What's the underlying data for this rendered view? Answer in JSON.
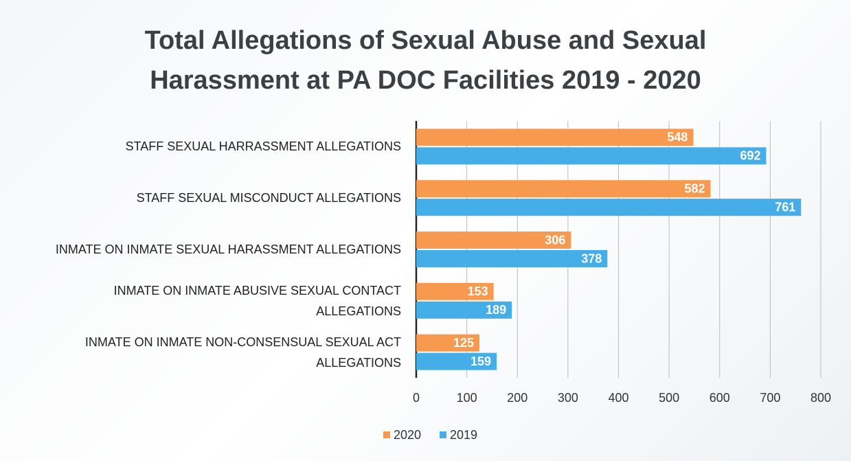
{
  "chart_data": {
    "type": "hbar",
    "title": "Total Allegations of Sexual Abuse and Sexual\nHarassment at PA DOC Facilities 2019 - 2020",
    "categories": [
      "STAFF SEXUAL HARRASSMENT ALLEGATIONS",
      "STAFF SEXUAL MISCONDUCT ALLEGATIONS",
      "INMATE ON INMATE SEXUAL HARASSMENT ALLEGATIONS",
      "INMATE ON INMATE ABUSIVE SEXUAL CONTACT\nALLEGATIONS",
      "INMATE ON INMATE NON-CONSENSUAL SEXUAL ACT\nALLEGATIONS"
    ],
    "series": [
      {
        "name": "2020",
        "color": "#f79a4f",
        "values": [
          548,
          582,
          306,
          153,
          125
        ]
      },
      {
        "name": "2019",
        "color": "#45aee8",
        "values": [
          692,
          761,
          378,
          189,
          159
        ]
      }
    ],
    "xlim": [
      0,
      800
    ],
    "xticks": [
      0,
      100,
      200,
      300,
      400,
      500,
      600,
      700,
      800
    ],
    "grid": true,
    "legend": "bottom"
  }
}
